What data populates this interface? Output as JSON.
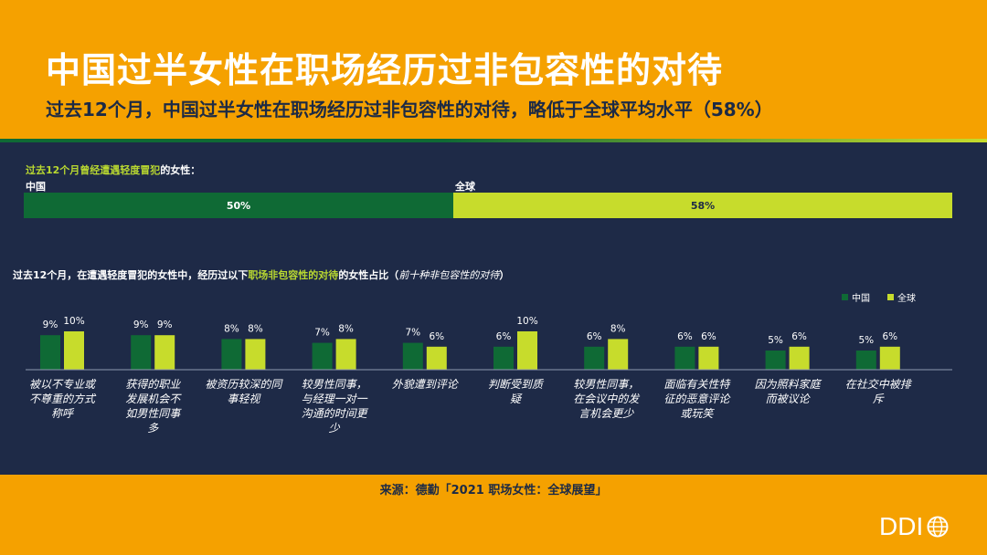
{
  "header": {
    "title": "中国过半女性在职场经历过非包容性的对待",
    "subtitle": "过去12个月，中国过半女性在职场经历过非包容性的对待，略低于全球平均水平（58%）"
  },
  "top_section": {
    "label_prefix": "过去12个月曾经",
    "label_highlight": "遭遇轻度冒犯",
    "label_suffix": "的女性："
  },
  "bottom_section": {
    "label_prefix": "过去12个月，在遭遇轻度冒犯的女性中，经历过以下",
    "label_highlight": "职场非包容性的对待",
    "label_suffix": "的女性占比（",
    "label_italic": "前十种非包容性的对待",
    "label_end": "）"
  },
  "legend": {
    "china": "中国",
    "global": "全球"
  },
  "colors": {
    "china": "#0f6a35",
    "global": "#c7dc2c",
    "background": "#f5a100",
    "panel": "#1e2a47"
  },
  "chart_data": [
    {
      "type": "bar",
      "orientation": "horizontal-stacked",
      "categories": [
        "中国",
        "全球"
      ],
      "values": [
        50,
        58
      ],
      "value_labels": [
        "50%",
        "58%"
      ]
    },
    {
      "type": "bar",
      "categories": [
        "被以不专业或不尊重的方式称呼",
        "获得的职业发展机会不如男性同事多",
        "被资历较深的同事轻视",
        "较男性同事，与经理一对一沟通的时间更少",
        "外貌遭到评论",
        "判断受到质疑",
        "较男性同事，在会议中的发言机会更少",
        "面临有关性特征的恶意评论或玩笑",
        "因为照料家庭而被议论",
        "在社交中被排斥"
      ],
      "category_lines": [
        [
          "被以不专业或",
          "不尊重的方式",
          "称呼"
        ],
        [
          "获得的职业",
          "发展机会不",
          "如男性同事",
          "多"
        ],
        [
          "被资历较深的同",
          "事轻视"
        ],
        [
          "较男性同事，",
          "与经理一对一",
          "沟通的时间更",
          "少"
        ],
        [
          "外貌遭到评论"
        ],
        [
          "判断受到质",
          "疑"
        ],
        [
          "较男性同事，",
          "在会议中的发",
          "言机会更少"
        ],
        [
          "面临有关性特",
          "征的恶意评论",
          "或玩笑"
        ],
        [
          "因为照料家庭",
          "而被议论"
        ],
        [
          "在社交中被排",
          "斥"
        ]
      ],
      "series": [
        {
          "name": "中国",
          "values": [
            9,
            9,
            8,
            7,
            7,
            6,
            6,
            6,
            5,
            5
          ]
        },
        {
          "name": "全球",
          "values": [
            10,
            9,
            8,
            8,
            6,
            10,
            8,
            6,
            6,
            6
          ]
        }
      ],
      "legend_position": "top-right"
    }
  ],
  "footer": {
    "source": "来源：德勤「2021 职场女性：全球展望」",
    "logo": "DDI"
  }
}
